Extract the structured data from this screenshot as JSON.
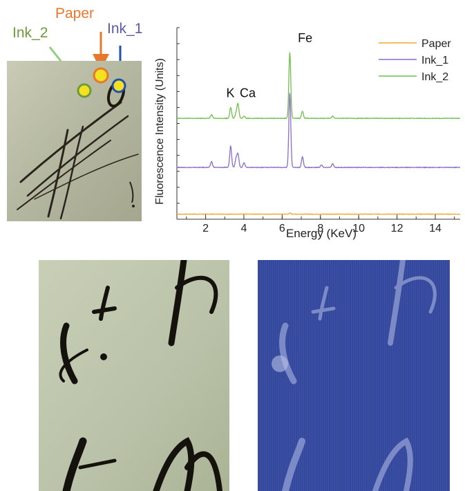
{
  "callouts": {
    "paper": {
      "label": "Paper",
      "color": "#e8772e"
    },
    "ink_1": {
      "label": "Ink_1",
      "color": "#5b59a8"
    },
    "ink_2": {
      "label": "Ink_2",
      "color": "#6e9b3a"
    }
  },
  "markers": {
    "fill": "#f4e11f",
    "arrow_ink_2": "#8fd07a",
    "arrow_paper": "#e8772e",
    "arrow_ink_1": "#1f4fb0"
  },
  "chart_data": {
    "type": "line",
    "xlabel": "Energy (KeV)",
    "ylabel": "Fluorescence Intensity (Units)",
    "xlim": [
      0.5,
      15.3
    ],
    "x_ticks": [
      2,
      4,
      6,
      8,
      10,
      12,
      14
    ],
    "grid": false,
    "legend_position": "top-right",
    "series": [
      {
        "name": "Paper",
        "color": "#f0a830",
        "offset": 0.04,
        "baseline": 0.005,
        "peaks": [
          {
            "x": 6.4,
            "h": 0.008
          }
        ]
      },
      {
        "name": "Ink_1",
        "color": "#8a6cc8",
        "offset": 0.43,
        "baseline": 0.005,
        "peaks": [
          {
            "x": 2.31,
            "h": 0.05
          },
          {
            "x": 3.31,
            "h": 0.18
          },
          {
            "x": 3.59,
            "h": 0.07
          },
          {
            "x": 3.69,
            "h": 0.11
          },
          {
            "x": 4.01,
            "h": 0.04
          },
          {
            "x": 6.4,
            "h": 0.62
          },
          {
            "x": 7.06,
            "h": 0.09
          },
          {
            "x": 8.05,
            "h": 0.02
          },
          {
            "x": 8.64,
            "h": 0.03
          }
        ]
      },
      {
        "name": "Ink_2",
        "color": "#6fbf4d",
        "offset": 0.84,
        "baseline": 0.005,
        "peaks": [
          {
            "x": 2.31,
            "h": 0.03
          },
          {
            "x": 3.31,
            "h": 0.09
          },
          {
            "x": 3.59,
            "h": 0.04
          },
          {
            "x": 3.69,
            "h": 0.12
          },
          {
            "x": 4.01,
            "h": 0.02
          },
          {
            "x": 6.4,
            "h": 0.55
          },
          {
            "x": 7.06,
            "h": 0.06
          },
          {
            "x": 8.64,
            "h": 0.02
          }
        ]
      }
    ],
    "annotations": [
      {
        "text": "K",
        "x": 3.3,
        "y": 1.02
      },
      {
        "text": "Ca",
        "x": 4.2,
        "y": 1.02
      },
      {
        "text": "Fe",
        "x": 7.2,
        "y": 1.48
      }
    ]
  }
}
